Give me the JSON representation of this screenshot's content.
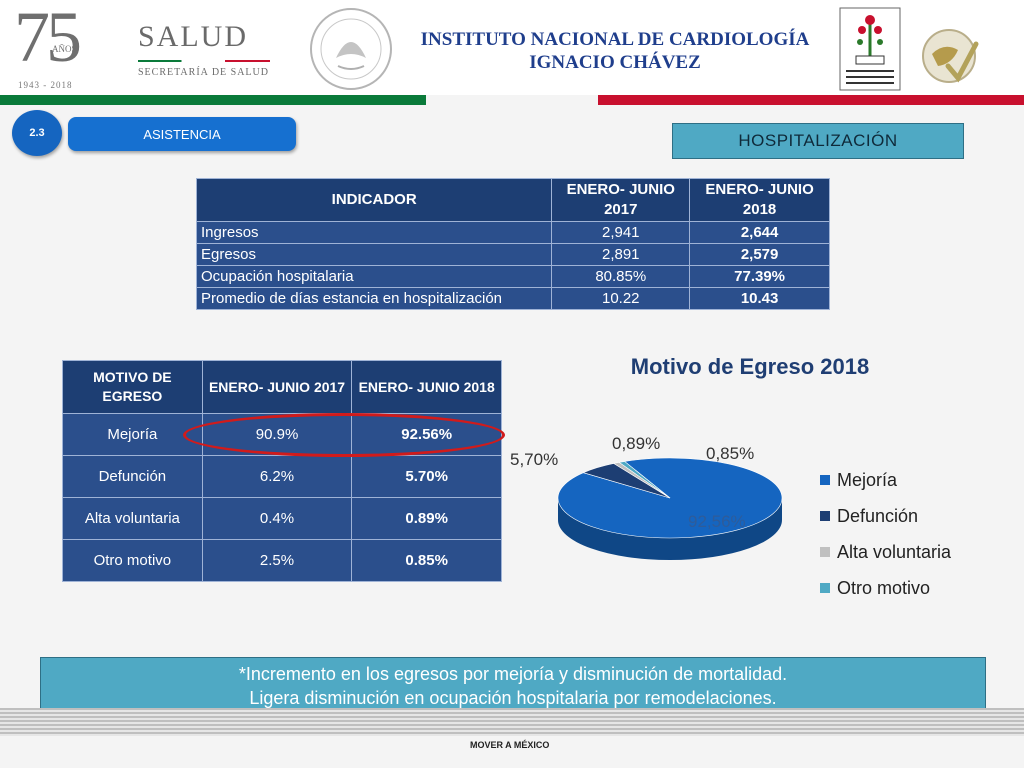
{
  "header": {
    "logo_number": "75",
    "logo_anos": "AÑOS",
    "logo_years": "1943 - 2018",
    "salud_title": "SALUD",
    "salud_subtitle": "SECRETARÍA DE SALUD",
    "institute_line1": "INSTITUTO NACIONAL DE CARDIOLOGÍA",
    "institute_line2": "IGNACIO CHÁVEZ"
  },
  "section": {
    "number": "2.3",
    "name": "ASISTENCIA",
    "subsection": "HOSPITALIZACIÓN"
  },
  "indicator_table": {
    "headers": [
      "INDICADOR",
      "ENERO- JUNIO 2017",
      "ENERO- JUNIO 2018"
    ],
    "rows": [
      [
        "Ingresos",
        "2,941",
        "2,644"
      ],
      [
        "Egresos",
        "2,891",
        "2,579"
      ],
      [
        "Ocupación hospitalaria",
        "80.85%",
        "77.39%"
      ],
      [
        "Promedio de días estancia en hospitalización",
        "10.22",
        "10.43"
      ]
    ]
  },
  "motivo_table": {
    "headers": [
      "MOTIVO DE EGRESO",
      "ENERO- JUNIO 2017",
      "ENERO- JUNIO 2018"
    ],
    "rows": [
      [
        "Mejoría",
        "90.9%",
        "92.56%"
      ],
      [
        "Defunción",
        "6.2%",
        "5.70%"
      ],
      [
        "Alta voluntaria",
        "0.4%",
        "0.89%"
      ],
      [
        "Otro motivo",
        "2.5%",
        "0.85%"
      ]
    ]
  },
  "chart_data": {
    "type": "pie",
    "title": "Motivo de Egreso 2018",
    "categories": [
      "Mejoría",
      "Defunción",
      "Alta voluntaria",
      "Otro motivo"
    ],
    "values": [
      92.56,
      5.7,
      0.89,
      0.85
    ],
    "data_labels": [
      "92,56%",
      "5,70%",
      "0,89%",
      "0,85%"
    ],
    "colors": [
      "#1565c0",
      "#1d3e73",
      "#c0c0c0",
      "#4fa9c4"
    ],
    "legend_position": "right"
  },
  "note": {
    "line1": "*Incremento en los egresos por mejoría y disminución de mortalidad.",
    "line2": "Ligera disminución en ocupación hospitalaria por remodelaciones."
  },
  "footer": {
    "brand": "MOVER A MÉXICO"
  }
}
